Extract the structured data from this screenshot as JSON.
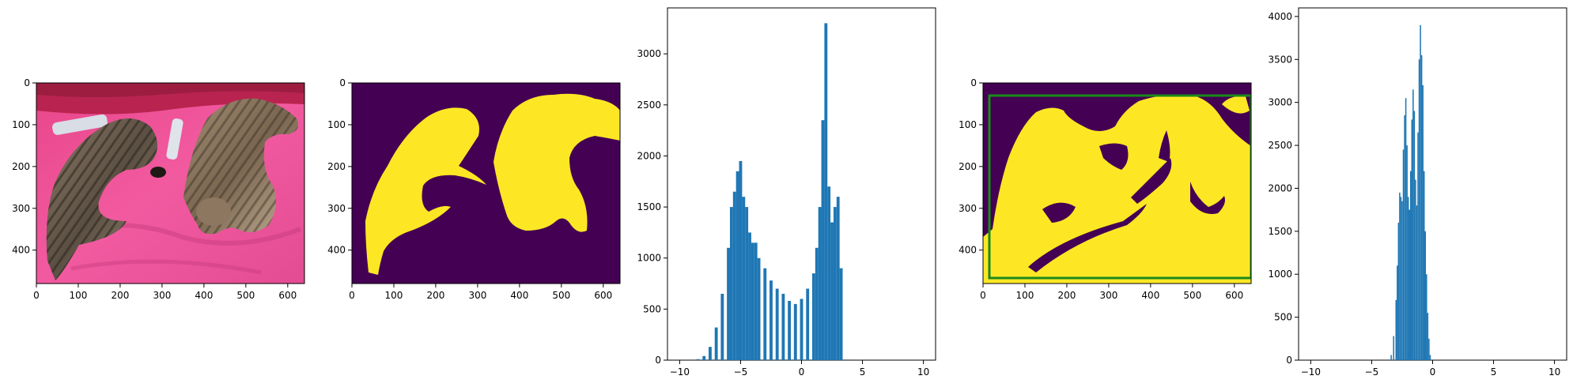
{
  "chart_data": [
    {
      "type": "image",
      "content": "photo of two tabby cats lying on a pink blanket with two TV remotes",
      "xlim": [
        0,
        640
      ],
      "ylim": [
        480,
        0
      ],
      "xticks": [
        0,
        100,
        200,
        300,
        400,
        500,
        600
      ],
      "yticks": [
        0,
        100,
        200,
        300,
        400
      ]
    },
    {
      "type": "heatmap",
      "content": "binary segmentation mask, yellow cat shapes on dark purple background",
      "colors": {
        "background": "#440154",
        "foreground": "#fde725"
      },
      "xlim": [
        0,
        640
      ],
      "ylim": [
        480,
        0
      ],
      "xticks": [
        0,
        100,
        200,
        300,
        400,
        500,
        600
      ],
      "yticks": [
        0,
        100,
        200,
        300,
        400
      ]
    },
    {
      "type": "bar",
      "content": "histogram",
      "color": "#1f77b4",
      "xlim": [
        -11,
        11
      ],
      "ylim": [
        0,
        3450
      ],
      "xticks": [
        -10,
        -5,
        0,
        5,
        10
      ],
      "yticks": [
        0,
        500,
        1000,
        1500,
        2000,
        2500,
        3000
      ],
      "x": [
        -8.5,
        -8.0,
        -7.5,
        -7.0,
        -6.5,
        -6.0,
        -5.75,
        -5.5,
        -5.25,
        -5.0,
        -4.75,
        -4.5,
        -4.25,
        -4.0,
        -3.75,
        -3.5,
        -3.0,
        -2.5,
        -2.0,
        -1.5,
        -1.0,
        -0.5,
        0.0,
        0.5,
        1.0,
        1.25,
        1.5,
        1.75,
        2.0,
        2.25,
        2.5,
        2.75,
        3.0,
        3.25
      ],
      "values": [
        10,
        40,
        130,
        320,
        650,
        1100,
        1500,
        1650,
        1850,
        1950,
        1600,
        1500,
        1250,
        1150,
        1150,
        1000,
        900,
        780,
        700,
        650,
        580,
        550,
        600,
        700,
        850,
        1100,
        1500,
        2350,
        3300,
        1700,
        1350,
        1500,
        1600,
        900
      ]
    },
    {
      "type": "heatmap",
      "content": "thresholded mask with green bounding box",
      "colors": {
        "background": "#440154",
        "foreground": "#fde725",
        "box": "#1a8a1a"
      },
      "box": {
        "x0": 20,
        "y0": 28,
        "x1": 640,
        "y1": 470
      },
      "xlim": [
        0,
        640
      ],
      "ylim": [
        480,
        0
      ],
      "xticks": [
        0,
        100,
        200,
        300,
        400,
        500,
        600
      ],
      "yticks": [
        0,
        100,
        200,
        300,
        400
      ]
    },
    {
      "type": "bar",
      "content": "histogram",
      "color": "#1f77b4",
      "xlim": [
        -11,
        11
      ],
      "ylim": [
        0,
        4100
      ],
      "xticks": [
        -10,
        -5,
        0,
        5,
        10
      ],
      "yticks": [
        0,
        500,
        1000,
        1500,
        2000,
        2500,
        3000,
        3500,
        4000
      ],
      "x": [
        -3.4,
        -3.2,
        -3.0,
        -2.9,
        -2.8,
        -2.7,
        -2.6,
        -2.5,
        -2.4,
        -2.3,
        -2.2,
        -2.1,
        -2.0,
        -1.9,
        -1.8,
        -1.7,
        -1.6,
        -1.5,
        -1.4,
        -1.3,
        -1.2,
        -1.1,
        -1.0,
        -0.9,
        -0.8,
        -0.7,
        -0.6,
        -0.5,
        -0.4,
        -0.3,
        -0.2
      ],
      "values": [
        60,
        280,
        700,
        1100,
        1600,
        1950,
        1900,
        1850,
        2450,
        2850,
        3050,
        2500,
        1900,
        1750,
        2200,
        2800,
        3150,
        2900,
        2100,
        1800,
        2650,
        3500,
        3900,
        3550,
        3200,
        2200,
        1500,
        1000,
        550,
        250,
        60
      ]
    }
  ]
}
